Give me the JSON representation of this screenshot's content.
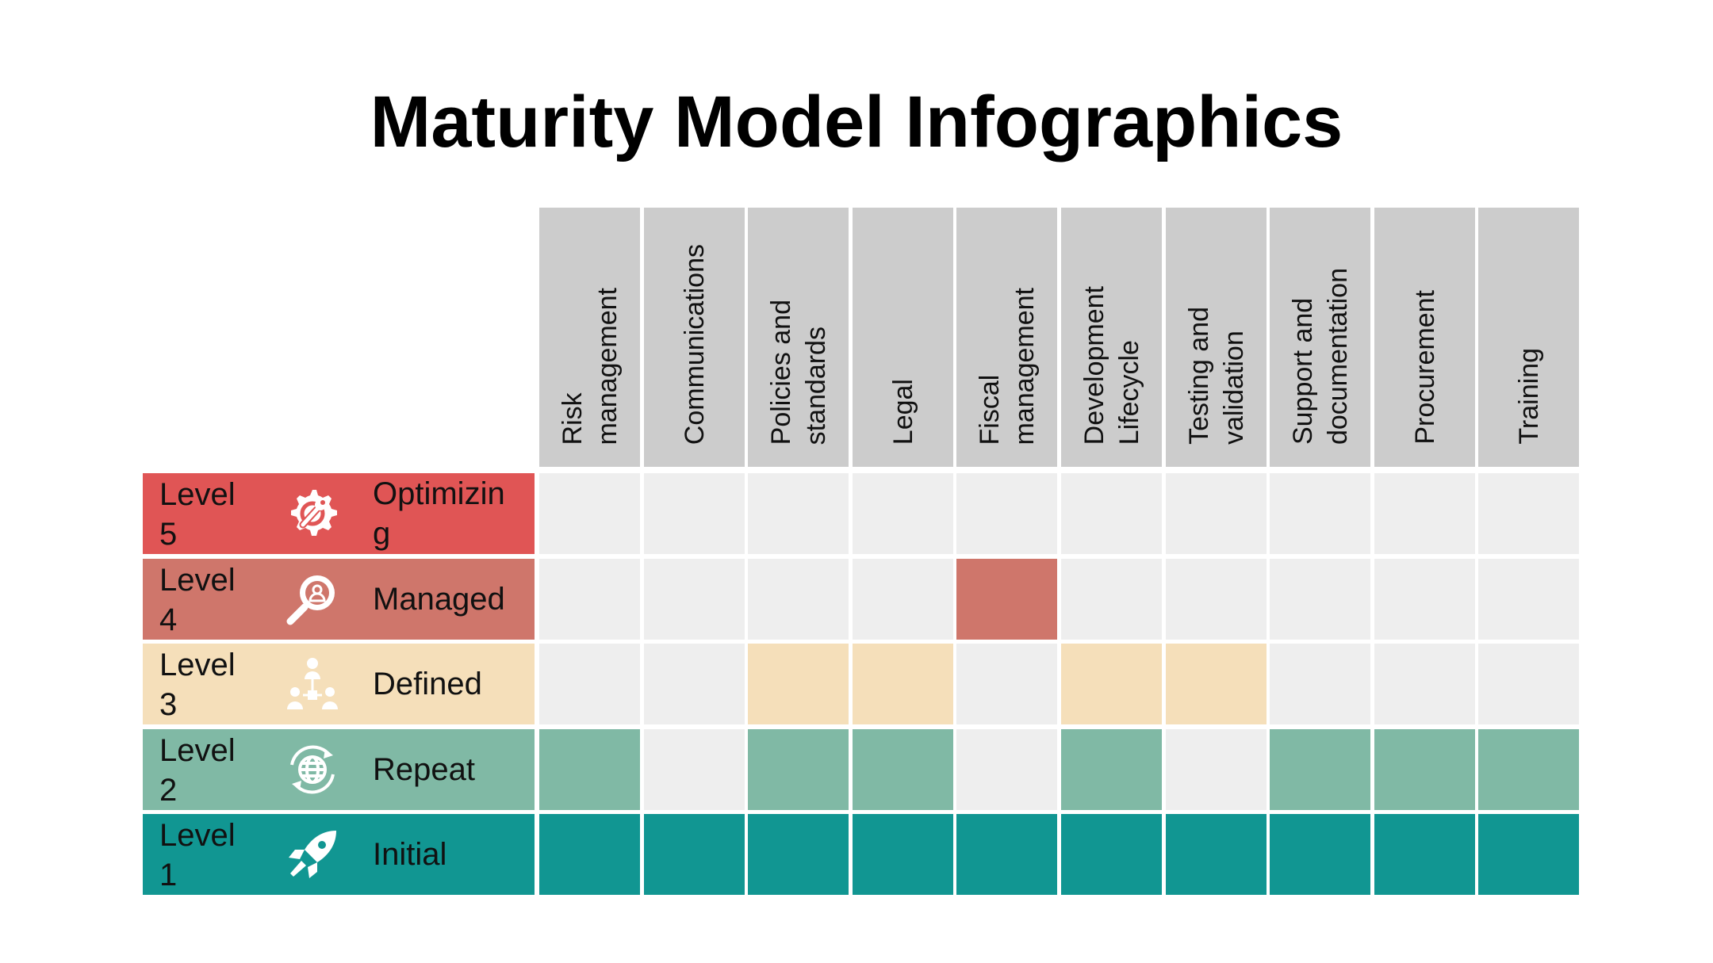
{
  "title": "Maturity Model Infographics",
  "colors": {
    "header_bg": "#cccccc",
    "empty_cell": "#eeeeee",
    "level5": "#e05555",
    "level4": "#cf766b",
    "level3": "#f5dfba",
    "level2": "#80b9a5",
    "level1": "#119692",
    "icon": "#ffffff"
  },
  "columns": [
    "Risk\nmanagement",
    "Communications",
    "Policies and\nstandards",
    "Legal",
    "Fiscal\nmanagement",
    "Development\nLifecycle",
    "Testing and\nvalidation",
    "Support and\ndocumentation",
    "Procurement",
    "Training"
  ],
  "rows": [
    {
      "level": "Level\n5",
      "name": "Optimizin\ng",
      "icon": "gear-wrench-icon",
      "color_key": "level5",
      "filled": [
        false,
        false,
        false,
        false,
        false,
        false,
        false,
        false,
        false,
        false
      ]
    },
    {
      "level": "Level\n4",
      "name": "Managed",
      "icon": "magnifier-user-icon",
      "color_key": "level4",
      "filled": [
        false,
        false,
        false,
        false,
        true,
        false,
        false,
        false,
        false,
        false
      ]
    },
    {
      "level": "Level\n3",
      "name": "Defined",
      "icon": "team-hierarchy-icon",
      "color_key": "level3",
      "filled": [
        false,
        false,
        true,
        true,
        false,
        true,
        true,
        false,
        false,
        false
      ]
    },
    {
      "level": "Level\n2",
      "name": "Repeat",
      "icon": "globe-cycle-icon",
      "color_key": "level2",
      "filled": [
        true,
        false,
        true,
        true,
        false,
        true,
        false,
        true,
        true,
        true
      ]
    },
    {
      "level": "Level\n1",
      "name": "Initial",
      "icon": "rocket-icon",
      "color_key": "level1",
      "filled": [
        true,
        true,
        true,
        true,
        true,
        true,
        true,
        true,
        true,
        true
      ]
    }
  ]
}
